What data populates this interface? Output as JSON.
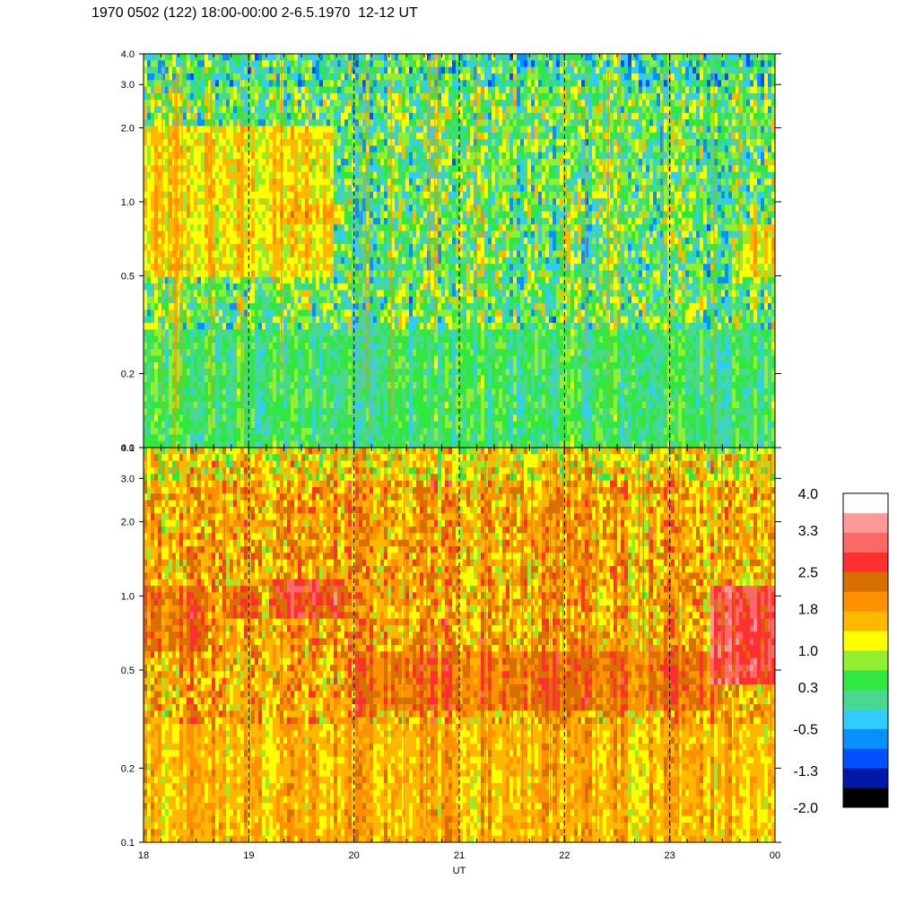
{
  "title": "1970 0502 (122) 18:00-00:00 2-6.5.1970  12-12 UT",
  "chart_data": {
    "type": "heatmap",
    "title": "1970 0502 (122) 18:00-00:00 2-6.5.1970  12-12 UT",
    "xlabel": "UT",
    "ylabel": "",
    "x_tick_labels": [
      "18",
      "19",
      "20",
      "21",
      "22",
      "23",
      "00"
    ],
    "x_range": [
      18,
      24
    ],
    "y_scale": "log",
    "y_range": [
      0.1,
      4.0
    ],
    "y_tick_labels": [
      "0.1",
      "0.2",
      "0.5",
      "1.0",
      "2.0",
      "3.0",
      "4.0"
    ],
    "y_tick_values": [
      0.1,
      0.2,
      0.5,
      1.0,
      2.0,
      3.0,
      4.0
    ],
    "vertical_dashed_lines_at": [
      19,
      20,
      21,
      22,
      23
    ],
    "panels": [
      {
        "name": "upper",
        "dominant_level_range": [
          -0.5,
          1.4
        ],
        "features": [
          {
            "x": [
              18.0,
              19.8
            ],
            "y": [
              0.5,
              2.0
            ],
            "level": 1.3
          },
          {
            "x": [
              19.3,
              19.9
            ],
            "y": [
              0.8,
              1.0
            ],
            "level": 1.6
          },
          {
            "x": [
              18.0,
              24.0
            ],
            "y": [
              0.1,
              0.3
            ],
            "level": 0.3
          },
          {
            "x": [
              23.7,
              24.0
            ],
            "y": [
              0.5,
              0.8
            ],
            "level": 1.3
          }
        ]
      },
      {
        "name": "lower",
        "dominant_level_range": [
          1.0,
          2.5
        ],
        "features": [
          {
            "x": [
              18.0,
              18.6
            ],
            "y": [
              0.6,
              1.1
            ],
            "level": 2.3
          },
          {
            "x": [
              18.8,
              19.1
            ],
            "y": [
              0.8,
              1.1
            ],
            "level": 2.4
          },
          {
            "x": [
              19.2,
              19.9
            ],
            "y": [
              0.8,
              1.2
            ],
            "level": 2.6
          },
          {
            "x": [
              20.0,
              23.5
            ],
            "y": [
              0.35,
              0.6
            ],
            "level": 2.2
          },
          {
            "x": [
              23.4,
              24.0
            ],
            "y": [
              0.45,
              1.1
            ],
            "level": 2.9
          },
          {
            "x": [
              18.0,
              24.0
            ],
            "y": [
              0.1,
              0.3
            ],
            "level": 1.6
          }
        ]
      }
    ],
    "colorbar": {
      "tick_labels": [
        "4.0",
        "3.3",
        "2.5",
        "1.8",
        "1.0",
        "0.3",
        "-0.5",
        "-1.3",
        "-2.0"
      ],
      "tick_values": [
        4.0,
        3.3,
        2.5,
        1.8,
        1.0,
        0.3,
        -0.5,
        -1.3,
        -2.0
      ],
      "range": [
        -2.0,
        4.0
      ],
      "colors": [
        "#000000",
        "#0018a8",
        "#0050ff",
        "#0890ff",
        "#30ccff",
        "#48d890",
        "#30e840",
        "#90f030",
        "#ffff00",
        "#ffb800",
        "#ff9000",
        "#d87000",
        "#ff3030",
        "#ff6868",
        "#ff9898",
        "#ffffff"
      ]
    }
  }
}
